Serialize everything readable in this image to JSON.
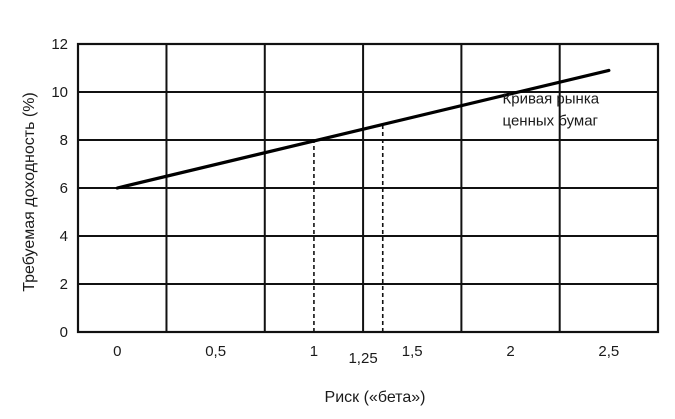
{
  "chart_data": {
    "type": "line",
    "xlabel": "Риск («бета»)",
    "ylabel": "Требуемая доходность (%)",
    "xlim": [
      -0.2,
      2.75
    ],
    "ylim": [
      0,
      12
    ],
    "x_ticks": [
      {
        "value": 0,
        "label": "0"
      },
      {
        "value": 0.5,
        "label": "0,5"
      },
      {
        "value": 1,
        "label": "1"
      },
      {
        "value": 1.25,
        "label": "1,25"
      },
      {
        "value": 1.5,
        "label": "1,5"
      },
      {
        "value": 2,
        "label": "2"
      },
      {
        "value": 2.5,
        "label": "2,5"
      }
    ],
    "y_ticks": [
      {
        "value": 0,
        "label": "0"
      },
      {
        "value": 2,
        "label": "2"
      },
      {
        "value": 4,
        "label": "4"
      },
      {
        "value": 6,
        "label": "6"
      },
      {
        "value": 8,
        "label": "8"
      },
      {
        "value": 10,
        "label": "10"
      },
      {
        "value": 12,
        "label": "12"
      }
    ],
    "grid": true,
    "vertical_grid_x": [
      0.25,
      0.75,
      1.25,
      1.75,
      2.25
    ],
    "series": [
      {
        "name": "Кривая рынка ценных бумаг",
        "x": [
          0,
          2.5
        ],
        "y": [
          6,
          10.9
        ]
      }
    ],
    "reference_lines": [
      {
        "x": 1,
        "y_from": 0,
        "y_to": 8,
        "style": "dashed"
      },
      {
        "x": 1.35,
        "y_from": 0,
        "y_to": 8.6,
        "style": "dashed"
      }
    ],
    "annotation": {
      "lines": [
        "Кривая рынка",
        "ценных бумаг"
      ],
      "near_x": 2.0,
      "near_y": 9.9
    }
  }
}
